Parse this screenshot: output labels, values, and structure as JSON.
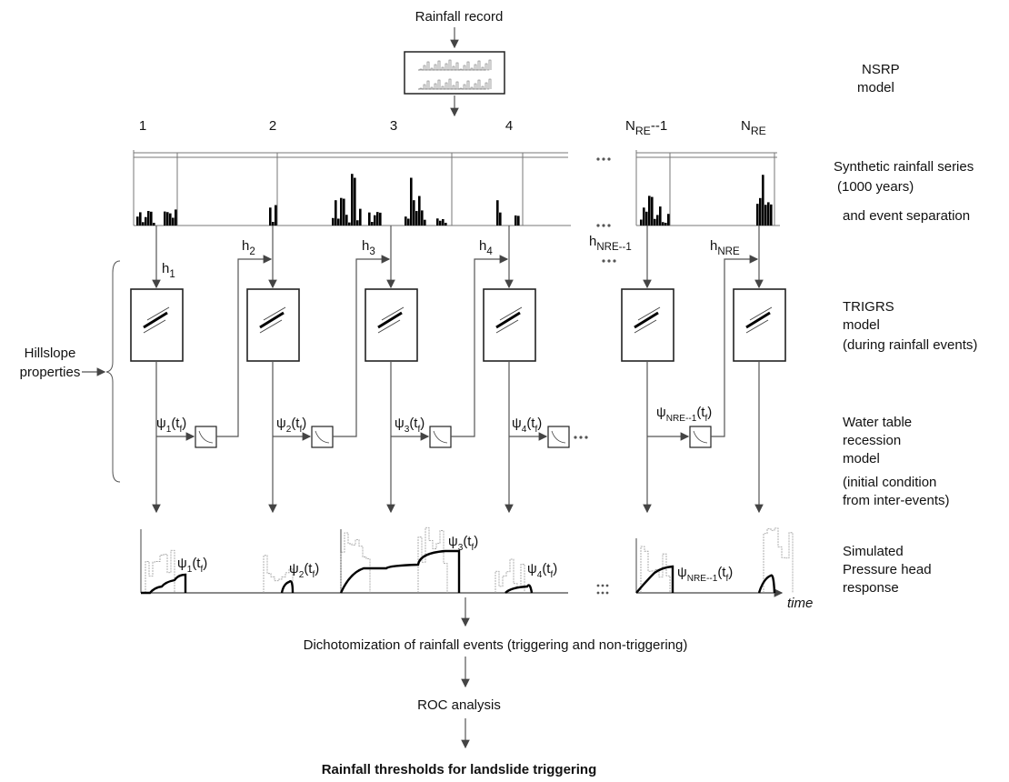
{
  "header": {
    "input": "Rainfall record",
    "nsrp": [
      "NSRP",
      "model"
    ]
  },
  "columns": [
    {
      "main": "1"
    },
    {
      "main": "2"
    },
    {
      "main": "3"
    },
    {
      "main": "4"
    },
    {
      "main": "N",
      "sub": "RE",
      "tail": "--1"
    },
    {
      "main": "N",
      "sub": "RE"
    }
  ],
  "h_labels": [
    {
      "main": "h",
      "sub": "1"
    },
    {
      "main": "h",
      "sub": "2"
    },
    {
      "main": "h",
      "sub": "3"
    },
    {
      "main": "h",
      "sub": "4"
    },
    {
      "main": "h",
      "sub": "NRE--1"
    },
    {
      "main": "h",
      "sub": "NRE"
    }
  ],
  "psi_labels": [
    {
      "main": "ψ",
      "sub": "1",
      "arg": "(t",
      "arg_sub": "f",
      "close": ")"
    },
    {
      "main": "ψ",
      "sub": "2",
      "arg": "(t",
      "arg_sub": "f",
      "close": ")"
    },
    {
      "main": "ψ",
      "sub": "3",
      "arg": "(t",
      "arg_sub": "f",
      "close": ")"
    },
    {
      "main": "ψ",
      "sub": "4",
      "arg": "(t",
      "arg_sub": "f",
      "close": ")"
    },
    {
      "main": "ψ",
      "sub": "NRE--1",
      "arg": "(t",
      "arg_sub": "f",
      "close": ")"
    }
  ],
  "pressure_labels": [
    {
      "main": "ψ",
      "sub": "1",
      "arg": "(t",
      "arg_sub": "f",
      "close": ")"
    },
    {
      "main": "ψ",
      "sub": "2",
      "arg": "(t",
      "arg_sub": "f",
      "close": ")"
    },
    {
      "main": "ψ",
      "sub": "3",
      "arg": "(t",
      "arg_sub": "f",
      "close": ")"
    },
    {
      "main": "ψ",
      "sub": "4",
      "arg": "(t",
      "arg_sub": "f",
      "close": ")"
    },
    {
      "main": "ψ",
      "sub": "NRE--1",
      "arg": "(t",
      "arg_sub": "f",
      "close": ")"
    }
  ],
  "right_labels": {
    "synthetic": [
      "Synthetic rainfall series",
      "(1000 years)",
      "and event separation"
    ],
    "trigrs": [
      "TRIGRS",
      "model",
      "(during rainfall events)"
    ],
    "recession": [
      "Water table",
      "recession",
      "model"
    ],
    "initial": [
      "(initial condition",
      "from inter-events)"
    ],
    "pressure": [
      "Simulated",
      "Pressure head",
      "response"
    ]
  },
  "hillslope": [
    "Hillslope",
    "properties"
  ],
  "time_label": "time",
  "steps": [
    "Dichotomization of rainfall events (triggering and non-triggering)",
    "ROC analysis"
  ],
  "result": "Rainfall thresholds for landslide triggering"
}
